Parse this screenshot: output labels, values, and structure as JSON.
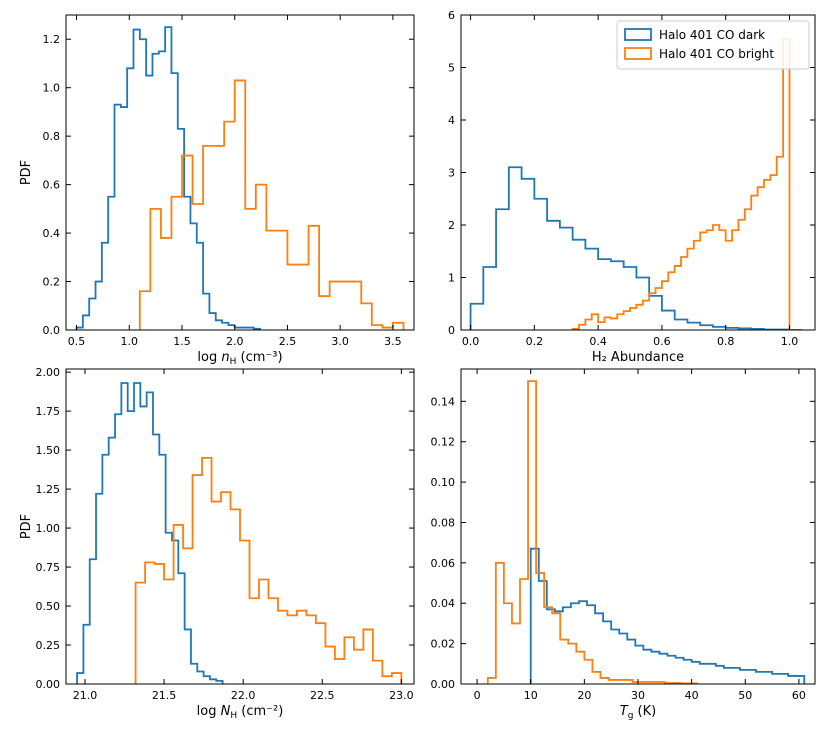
{
  "chart_data": [
    {
      "type": "histogram",
      "panel": "top-left",
      "xlabel": "log n_H (cm⁻³)",
      "ylabel": "PDF",
      "xlim": [
        0.4,
        3.7
      ],
      "ylim": [
        0,
        1.3
      ],
      "xticks": [
        0.5,
        1.0,
        1.5,
        2.0,
        2.5,
        3.0,
        3.5
      ],
      "xtick_labels": [
        "0.5",
        "1.0",
        "1.5",
        "2.0",
        "2.5",
        "3.0",
        "3.5"
      ],
      "yticks": [
        0.0,
        0.2,
        0.4,
        0.6,
        0.8,
        1.0,
        1.2
      ],
      "ytick_labels": [
        "0.0",
        "0.2",
        "0.4",
        "0.6",
        "0.8",
        "1.0",
        "1.2"
      ],
      "series": [
        {
          "name": "Halo 401 CO dark",
          "color": "#1f77b4",
          "edges": [
            0.5,
            0.56,
            0.62,
            0.68,
            0.74,
            0.8,
            0.86,
            0.92,
            0.98,
            1.04,
            1.1,
            1.16,
            1.22,
            1.28,
            1.34,
            1.4,
            1.46,
            1.52,
            1.58,
            1.64,
            1.7,
            1.76,
            1.82,
            1.88,
            1.94,
            2.0,
            2.06,
            2.12,
            2.18,
            2.24
          ],
          "values": [
            0.01,
            0.06,
            0.13,
            0.2,
            0.36,
            0.55,
            0.93,
            0.92,
            1.08,
            1.24,
            1.2,
            1.05,
            1.14,
            1.15,
            1.25,
            1.06,
            0.83,
            0.55,
            0.44,
            0.36,
            0.15,
            0.07,
            0.04,
            0.03,
            0.02,
            0.01,
            0.01,
            0.01,
            0.005
          ]
        },
        {
          "name": "Halo 401 CO bright",
          "color": "#ff7f0e",
          "edges": [
            1.1,
            1.2,
            1.3,
            1.4,
            1.5,
            1.6,
            1.7,
            1.8,
            1.9,
            2.0,
            2.1,
            2.2,
            2.3,
            2.4,
            2.5,
            2.6,
            2.7,
            2.8,
            2.9,
            3.0,
            3.1,
            3.2,
            3.3,
            3.4,
            3.5,
            3.6
          ],
          "values": [
            0.16,
            0.5,
            0.38,
            0.55,
            0.72,
            0.52,
            0.76,
            0.76,
            0.86,
            1.03,
            0.5,
            0.6,
            0.41,
            0.41,
            0.27,
            0.27,
            0.43,
            0.14,
            0.2,
            0.2,
            0.2,
            0.11,
            0.02,
            0.01,
            0.03
          ]
        }
      ]
    },
    {
      "type": "histogram",
      "panel": "top-right",
      "xlabel": "H₂ Abundance",
      "ylabel": "",
      "xlim": [
        -0.03,
        1.08
      ],
      "ylim": [
        0,
        6
      ],
      "xticks": [
        0.0,
        0.2,
        0.4,
        0.6,
        0.8,
        1.0
      ],
      "xtick_labels": [
        "0.0",
        "0.2",
        "0.4",
        "0.6",
        "0.8",
        "1.0"
      ],
      "yticks": [
        0,
        1,
        2,
        3,
        4,
        5,
        6
      ],
      "ytick_labels": [
        "0",
        "1",
        "2",
        "3",
        "4",
        "5",
        "6"
      ],
      "legend": {
        "position": "top-right",
        "entries": [
          "Halo 401 CO dark",
          "Halo 401 CO bright"
        ]
      },
      "series": [
        {
          "name": "Halo 401 CO dark",
          "color": "#1f77b4",
          "edges": [
            0.0,
            0.04,
            0.08,
            0.12,
            0.16,
            0.2,
            0.24,
            0.28,
            0.32,
            0.36,
            0.4,
            0.44,
            0.48,
            0.52,
            0.56,
            0.6,
            0.64,
            0.68,
            0.72,
            0.76,
            0.8,
            0.84,
            0.88,
            0.92,
            0.96,
            1.0,
            1.04
          ],
          "values": [
            0.5,
            1.2,
            2.3,
            3.1,
            2.88,
            2.5,
            2.08,
            1.95,
            1.72,
            1.55,
            1.35,
            1.31,
            1.2,
            1.0,
            0.65,
            0.37,
            0.2,
            0.14,
            0.09,
            0.06,
            0.04,
            0.03,
            0.02,
            0.01,
            0.01,
            0.0
          ]
        },
        {
          "name": "Halo 401 CO bright",
          "color": "#ff7f0e",
          "edges": [
            0.32,
            0.34,
            0.36,
            0.38,
            0.4,
            0.42,
            0.44,
            0.46,
            0.48,
            0.5,
            0.52,
            0.54,
            0.56,
            0.58,
            0.6,
            0.62,
            0.64,
            0.66,
            0.68,
            0.7,
            0.72,
            0.74,
            0.76,
            0.78,
            0.8,
            0.82,
            0.84,
            0.86,
            0.88,
            0.9,
            0.92,
            0.94,
            0.96,
            0.98,
            1.0,
            1.02
          ],
          "values": [
            0.02,
            0.1,
            0.2,
            0.3,
            0.15,
            0.24,
            0.22,
            0.3,
            0.36,
            0.42,
            0.48,
            0.56,
            0.7,
            0.8,
            0.93,
            1.1,
            1.22,
            1.39,
            1.55,
            1.7,
            1.86,
            1.9,
            2.0,
            1.9,
            1.7,
            1.9,
            2.1,
            2.3,
            2.56,
            2.72,
            2.86,
            2.95,
            3.3,
            5.55,
            0.0
          ]
        }
      ]
    },
    {
      "type": "histogram",
      "panel": "bottom-left",
      "xlabel": "log N_H (cm⁻²)",
      "ylabel": "PDF",
      "xlim": [
        20.88,
        23.08
      ],
      "ylim": [
        0,
        2.02
      ],
      "xticks": [
        21.0,
        21.5,
        22.0,
        22.5,
        23.0
      ],
      "xtick_labels": [
        "21.0",
        "21.5",
        "22.0",
        "22.5",
        "23.0"
      ],
      "yticks": [
        0.0,
        0.25,
        0.5,
        0.75,
        1.0,
        1.25,
        1.5,
        1.75,
        2.0
      ],
      "ytick_labels": [
        "0.00",
        "0.25",
        "0.50",
        "0.75",
        "1.00",
        "1.25",
        "1.50",
        "1.75",
        "2.00"
      ],
      "series": [
        {
          "name": "Halo 401 CO dark",
          "color": "#1f77b4",
          "edges": [
            20.95,
            20.99,
            21.03,
            21.07,
            21.11,
            21.15,
            21.19,
            21.23,
            21.27,
            21.31,
            21.35,
            21.39,
            21.43,
            21.47,
            21.51,
            21.55,
            21.59,
            21.63,
            21.67,
            21.71,
            21.75,
            21.79,
            21.83,
            21.87
          ],
          "values": [
            0.07,
            0.38,
            0.8,
            1.22,
            1.47,
            1.58,
            1.73,
            1.93,
            1.75,
            1.93,
            1.78,
            1.87,
            1.6,
            1.47,
            0.97,
            0.92,
            0.71,
            0.35,
            0.13,
            0.08,
            0.05,
            0.03,
            0.02
          ]
        },
        {
          "name": "Halo 401 CO bright",
          "color": "#ff7f0e",
          "edges": [
            21.32,
            21.38,
            21.44,
            21.5,
            21.56,
            21.62,
            21.68,
            21.74,
            21.8,
            21.86,
            21.92,
            21.98,
            22.04,
            22.1,
            22.16,
            22.22,
            22.28,
            22.34,
            22.4,
            22.46,
            22.52,
            22.58,
            22.64,
            22.7,
            22.76,
            22.82,
            22.88,
            22.94,
            23.0
          ],
          "values": [
            0.65,
            0.78,
            0.77,
            0.67,
            1.02,
            0.87,
            1.34,
            1.45,
            1.17,
            1.23,
            1.12,
            0.92,
            0.55,
            0.67,
            0.55,
            0.47,
            0.44,
            0.47,
            0.44,
            0.39,
            0.24,
            0.16,
            0.3,
            0.22,
            0.35,
            0.15,
            0.05,
            0.07
          ]
        }
      ]
    },
    {
      "type": "histogram",
      "panel": "bottom-right",
      "xlabel": "T_g (K)",
      "ylabel": "",
      "xlim": [
        -3,
        63
      ],
      "ylim": [
        0,
        0.156
      ],
      "xticks": [
        0,
        10,
        20,
        30,
        40,
        50,
        60
      ],
      "xtick_labels": [
        "0",
        "10",
        "20",
        "30",
        "40",
        "50",
        "60"
      ],
      "yticks": [
        0.0,
        0.02,
        0.04,
        0.06,
        0.08,
        0.1,
        0.12,
        0.14
      ],
      "ytick_labels": [
        "0.00",
        "0.02",
        "0.04",
        "0.06",
        "0.08",
        "0.10",
        "0.12",
        "0.14"
      ],
      "series": [
        {
          "name": "Halo 401 CO dark",
          "color": "#1f77b4",
          "edges": [
            10,
            11.5,
            13,
            14.5,
            16,
            17.5,
            19,
            20.5,
            22,
            23.5,
            25,
            26.5,
            28,
            29.5,
            31,
            32.5,
            34,
            35.5,
            37,
            38.5,
            40,
            41.5,
            43,
            44.5,
            46,
            47.5,
            49,
            50.5,
            52,
            53.5,
            55,
            56.5,
            58,
            59.5,
            61
          ],
          "values": [
            0.067,
            0.051,
            0.037,
            0.036,
            0.038,
            0.04,
            0.041,
            0.039,
            0.035,
            0.031,
            0.027,
            0.025,
            0.022,
            0.019,
            0.017,
            0.016,
            0.015,
            0.014,
            0.013,
            0.012,
            0.011,
            0.01,
            0.01,
            0.009,
            0.008,
            0.008,
            0.007,
            0.007,
            0.006,
            0.006,
            0.005,
            0.005,
            0.004,
            0.004
          ]
        },
        {
          "name": "Halo 401 CO bright",
          "color": "#ff7f0e",
          "edges": [
            2.0,
            3.5,
            5.0,
            6.5,
            8.0,
            9.5,
            11.0,
            12.5,
            14.0,
            15.5,
            17.0,
            18.5,
            20.0,
            21.5,
            23.0,
            24.5,
            26.0,
            27.5,
            29.0,
            30.5,
            32.0,
            33.5,
            35.0,
            36.5,
            38.0,
            39.5,
            41.0
          ],
          "values": [
            0.003,
            0.06,
            0.04,
            0.03,
            0.052,
            0.15,
            0.055,
            0.038,
            0.035,
            0.022,
            0.02,
            0.016,
            0.012,
            0.006,
            0.003,
            0.002,
            0.002,
            0.002,
            0.001,
            0.001,
            0.001,
            0.001,
            0.0005,
            0.0005,
            0.0003,
            0.0003
          ]
        }
      ]
    }
  ]
}
